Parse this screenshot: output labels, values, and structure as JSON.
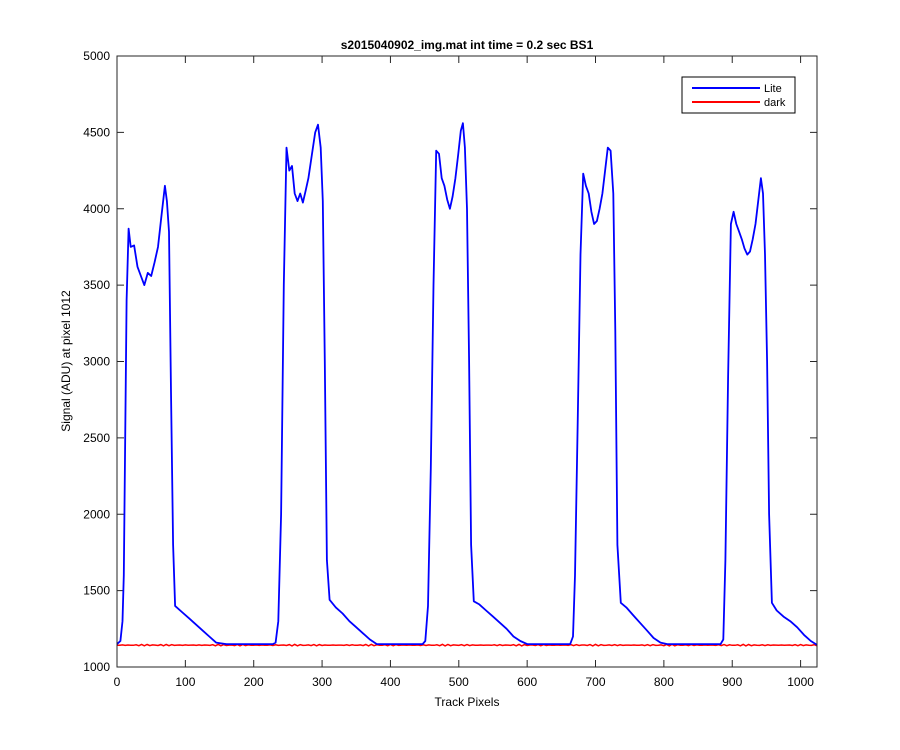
{
  "chart_data": {
    "type": "line",
    "title": "s2015040902_img.mat int time = 0.2 sec   BS1",
    "xlabel": "Track Pixels",
    "ylabel": "Signal (ADU) at pixel 1012",
    "xlim": [
      0,
      1024
    ],
    "ylim": [
      1000,
      5000
    ],
    "xticks": [
      0,
      100,
      200,
      300,
      400,
      500,
      600,
      700,
      800,
      900,
      1000
    ],
    "yticks": [
      1000,
      1500,
      2000,
      2500,
      3000,
      3500,
      4000,
      4500,
      5000
    ],
    "grid": false,
    "legend_position": "top-right",
    "series": [
      {
        "name": "Lite",
        "color": "#0000ff",
        "points": [
          [
            0,
            1150
          ],
          [
            5,
            1170
          ],
          [
            8,
            1300
          ],
          [
            10,
            1600
          ],
          [
            12,
            2500
          ],
          [
            14,
            3400
          ],
          [
            17,
            3870
          ],
          [
            20,
            3750
          ],
          [
            25,
            3760
          ],
          [
            30,
            3620
          ],
          [
            35,
            3560
          ],
          [
            40,
            3500
          ],
          [
            45,
            3580
          ],
          [
            50,
            3560
          ],
          [
            55,
            3650
          ],
          [
            60,
            3750
          ],
          [
            65,
            3950
          ],
          [
            70,
            4150
          ],
          [
            73,
            4050
          ],
          [
            76,
            3850
          ],
          [
            79,
            2800
          ],
          [
            82,
            1800
          ],
          [
            85,
            1400
          ],
          [
            95,
            1360
          ],
          [
            105,
            1320
          ],
          [
            115,
            1280
          ],
          [
            125,
            1240
          ],
          [
            135,
            1200
          ],
          [
            145,
            1160
          ],
          [
            160,
            1150
          ],
          [
            200,
            1150
          ],
          [
            228,
            1150
          ],
          [
            232,
            1160
          ],
          [
            236,
            1300
          ],
          [
            240,
            2000
          ],
          [
            244,
            3500
          ],
          [
            248,
            4400
          ],
          [
            252,
            4250
          ],
          [
            256,
            4280
          ],
          [
            260,
            4100
          ],
          [
            264,
            4050
          ],
          [
            268,
            4100
          ],
          [
            272,
            4040
          ],
          [
            276,
            4120
          ],
          [
            280,
            4200
          ],
          [
            285,
            4350
          ],
          [
            290,
            4500
          ],
          [
            294,
            4550
          ],
          [
            298,
            4400
          ],
          [
            301,
            4050
          ],
          [
            304,
            3000
          ],
          [
            307,
            1700
          ],
          [
            311,
            1440
          ],
          [
            320,
            1390
          ],
          [
            330,
            1350
          ],
          [
            340,
            1300
          ],
          [
            350,
            1260
          ],
          [
            360,
            1220
          ],
          [
            370,
            1180
          ],
          [
            380,
            1150
          ],
          [
            440,
            1150
          ],
          [
            447,
            1150
          ],
          [
            451,
            1170
          ],
          [
            455,
            1400
          ],
          [
            459,
            2300
          ],
          [
            463,
            3500
          ],
          [
            467,
            4380
          ],
          [
            471,
            4360
          ],
          [
            475,
            4200
          ],
          [
            479,
            4150
          ],
          [
            483,
            4060
          ],
          [
            487,
            4000
          ],
          [
            491,
            4080
          ],
          [
            495,
            4200
          ],
          [
            499,
            4350
          ],
          [
            503,
            4510
          ],
          [
            506,
            4560
          ],
          [
            509,
            4400
          ],
          [
            512,
            4000
          ],
          [
            515,
            3000
          ],
          [
            518,
            1800
          ],
          [
            522,
            1430
          ],
          [
            530,
            1410
          ],
          [
            540,
            1370
          ],
          [
            550,
            1330
          ],
          [
            560,
            1290
          ],
          [
            570,
            1250
          ],
          [
            580,
            1200
          ],
          [
            590,
            1170
          ],
          [
            600,
            1150
          ],
          [
            655,
            1150
          ],
          [
            663,
            1150
          ],
          [
            667,
            1200
          ],
          [
            670,
            1600
          ],
          [
            674,
            2600
          ],
          [
            678,
            3700
          ],
          [
            682,
            4230
          ],
          [
            686,
            4150
          ],
          [
            690,
            4100
          ],
          [
            694,
            3980
          ],
          [
            698,
            3900
          ],
          [
            702,
            3920
          ],
          [
            706,
            4000
          ],
          [
            710,
            4100
          ],
          [
            714,
            4250
          ],
          [
            718,
            4400
          ],
          [
            722,
            4380
          ],
          [
            726,
            4100
          ],
          [
            729,
            3200
          ],
          [
            732,
            1800
          ],
          [
            737,
            1420
          ],
          [
            745,
            1390
          ],
          [
            755,
            1340
          ],
          [
            765,
            1290
          ],
          [
            775,
            1240
          ],
          [
            785,
            1190
          ],
          [
            795,
            1160
          ],
          [
            805,
            1150
          ],
          [
            875,
            1150
          ],
          [
            883,
            1150
          ],
          [
            887,
            1180
          ],
          [
            890,
            1700
          ],
          [
            894,
            2900
          ],
          [
            898,
            3900
          ],
          [
            902,
            3980
          ],
          [
            906,
            3900
          ],
          [
            910,
            3850
          ],
          [
            914,
            3800
          ],
          [
            918,
            3740
          ],
          [
            922,
            3700
          ],
          [
            926,
            3720
          ],
          [
            930,
            3800
          ],
          [
            934,
            3900
          ],
          [
            938,
            4050
          ],
          [
            942,
            4200
          ],
          [
            945,
            4100
          ],
          [
            948,
            3700
          ],
          [
            951,
            3000
          ],
          [
            954,
            2000
          ],
          [
            958,
            1420
          ],
          [
            965,
            1370
          ],
          [
            975,
            1330
          ],
          [
            985,
            1300
          ],
          [
            995,
            1260
          ],
          [
            1005,
            1210
          ],
          [
            1015,
            1170
          ],
          [
            1024,
            1145
          ]
        ]
      },
      {
        "name": "dark",
        "color": "#ff0000",
        "flat_value": 1143
      }
    ]
  }
}
